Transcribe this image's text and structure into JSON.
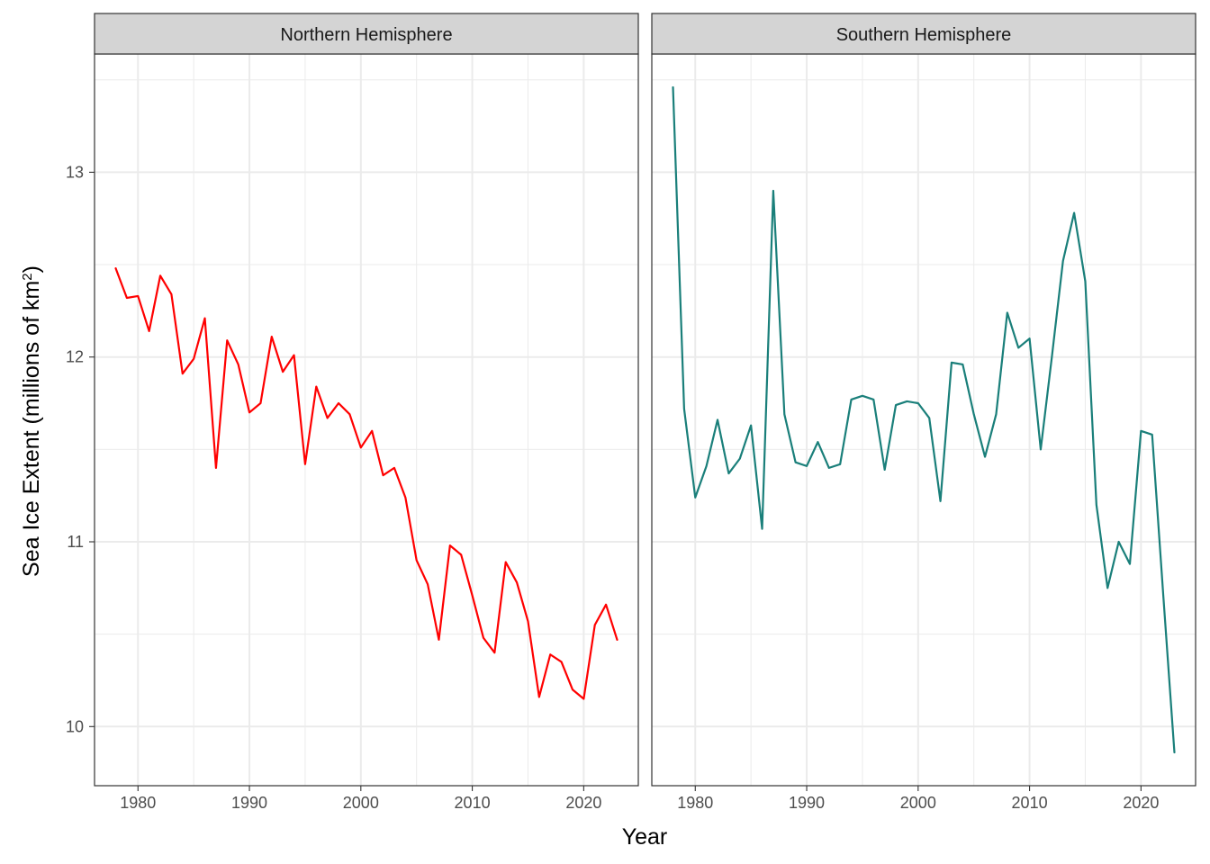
{
  "chart_data": {
    "type": "line",
    "xlabel": "Year",
    "ylabel": "Sea Ice Extent",
    "ylabel_paren": "millions of km",
    "ylabel_sup": "2",
    "xlim": [
      1976.1,
      2024.9
    ],
    "ylim": [
      9.68,
      13.64
    ],
    "x_ticks": [
      1980,
      1990,
      2000,
      2010,
      2020
    ],
    "y_ticks": [
      10,
      11,
      12,
      13
    ],
    "grid": true,
    "legend": "none",
    "panels": [
      {
        "name": "Northern Hemisphere",
        "color": "#ff0000",
        "x": [
          1978,
          1979,
          1980,
          1981,
          1982,
          1983,
          1984,
          1985,
          1986,
          1987,
          1988,
          1989,
          1990,
          1991,
          1992,
          1993,
          1994,
          1995,
          1996,
          1997,
          1998,
          1999,
          2000,
          2001,
          2002,
          2003,
          2004,
          2005,
          2006,
          2007,
          2008,
          2009,
          2010,
          2011,
          2012,
          2013,
          2014,
          2015,
          2016,
          2017,
          2018,
          2019,
          2020,
          2021,
          2022,
          2023
        ],
        "values": [
          12.48,
          12.32,
          12.33,
          12.14,
          12.44,
          12.34,
          11.91,
          11.99,
          12.21,
          11.4,
          12.09,
          11.96,
          11.7,
          11.75,
          12.11,
          11.92,
          12.01,
          11.42,
          11.84,
          11.67,
          11.75,
          11.69,
          11.51,
          11.6,
          11.36,
          11.4,
          11.24,
          10.9,
          10.77,
          10.47,
          10.98,
          10.93,
          10.71,
          10.48,
          10.4,
          10.89,
          10.78,
          10.57,
          10.16,
          10.39,
          10.35,
          10.2,
          10.15,
          10.55,
          10.66,
          10.47
        ]
      },
      {
        "name": "Southern Hemisphere",
        "color": "#1a7f7a",
        "x": [
          1978,
          1979,
          1980,
          1981,
          1982,
          1983,
          1984,
          1985,
          1986,
          1987,
          1988,
          1989,
          1990,
          1991,
          1992,
          1993,
          1994,
          1995,
          1996,
          1997,
          1998,
          1999,
          2000,
          2001,
          2002,
          2003,
          2004,
          2005,
          2006,
          2007,
          2008,
          2009,
          2010,
          2011,
          2012,
          2013,
          2014,
          2015,
          2016,
          2017,
          2018,
          2019,
          2020,
          2021,
          2022,
          2023
        ],
        "values": [
          13.46,
          11.72,
          11.24,
          11.41,
          11.66,
          11.37,
          11.45,
          11.63,
          11.07,
          12.9,
          11.69,
          11.43,
          11.41,
          11.54,
          11.4,
          11.42,
          11.77,
          11.79,
          11.77,
          11.39,
          11.74,
          11.76,
          11.75,
          11.67,
          11.22,
          11.97,
          11.96,
          11.69,
          11.46,
          11.69,
          12.24,
          12.05,
          12.1,
          11.5,
          12.0,
          12.52,
          12.78,
          12.41,
          11.2,
          10.75,
          11.0,
          10.88,
          11.6,
          11.58,
          10.71,
          9.86
        ]
      }
    ]
  }
}
